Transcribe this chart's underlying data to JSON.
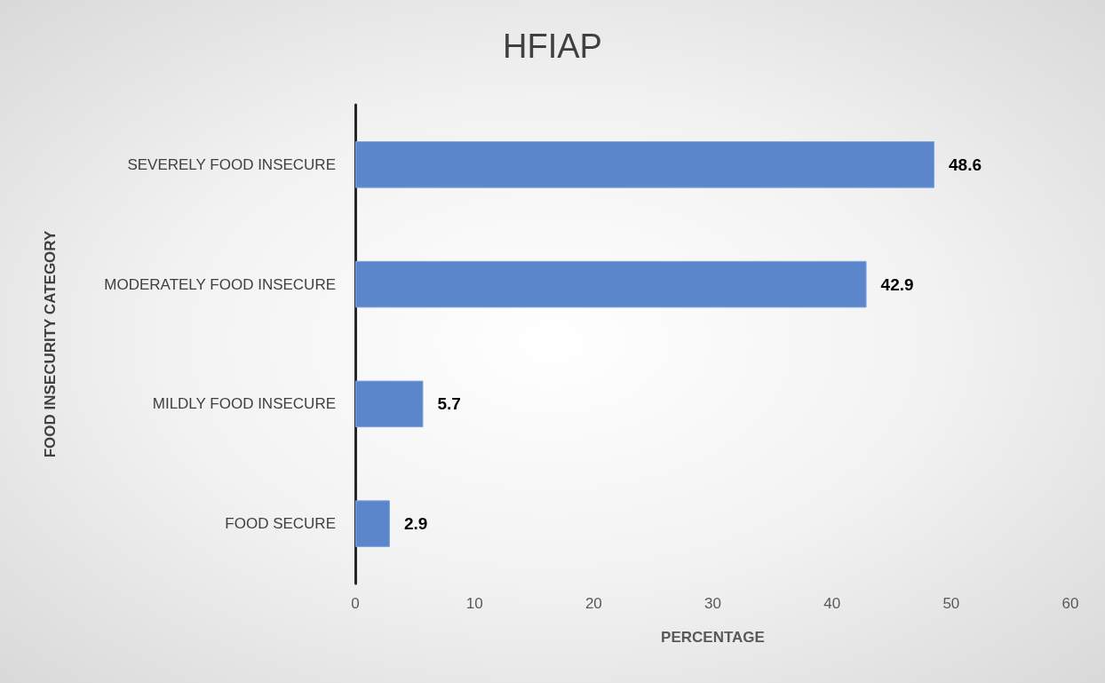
{
  "chart_data": {
    "type": "bar",
    "orientation": "horizontal",
    "title": "HFIAP",
    "xlabel": "PERCENTAGE",
    "ylabel": "FOOD INSECURITY CATEGORY",
    "categories": [
      "SEVERELY FOOD INSECURE",
      "MODERATELY FOOD INSECURE",
      "MILDLY FOOD INSECURE",
      "FOOD SECURE"
    ],
    "values": [
      48.6,
      42.9,
      5.7,
      2.9
    ],
    "color": "#5b86cc",
    "xlim": [
      0,
      60
    ],
    "xticks": [
      0,
      10,
      20,
      30,
      40,
      50,
      60
    ],
    "grid": false,
    "data_labels": true
  }
}
